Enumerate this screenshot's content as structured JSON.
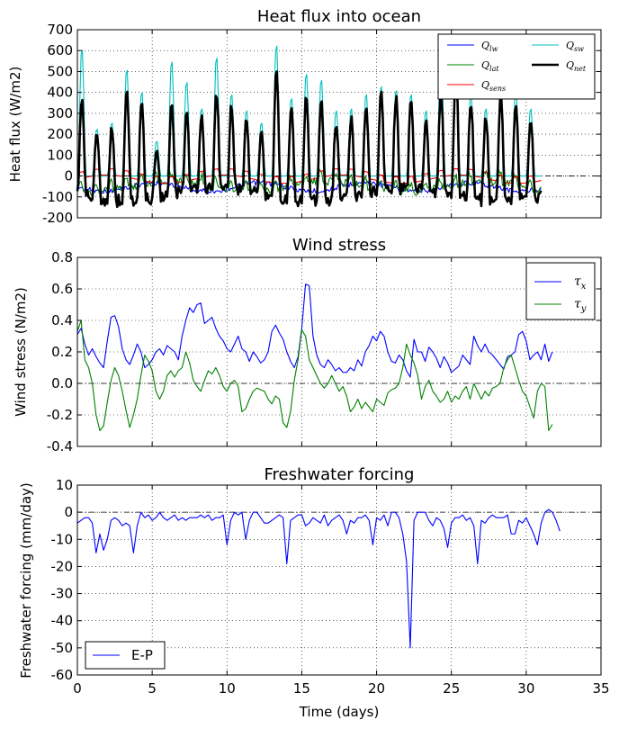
{
  "chart_data": [
    {
      "id": "heat",
      "type": "line",
      "title": "Heat flux into ocean",
      "xlabel": "",
      "ylabel": "Heat flux (W/m2)",
      "xlim": [
        0,
        35
      ],
      "ylim": [
        -200,
        700
      ],
      "xticks": [
        0,
        5,
        10,
        15,
        20,
        25,
        30,
        35
      ],
      "yticks": [
        -200,
        -100,
        0,
        100,
        200,
        300,
        400,
        500,
        600,
        700
      ],
      "grid": true,
      "legend": "top-right",
      "zero_line": true,
      "series": [
        {
          "name": "Q_lw",
          "label_base": "Q",
          "label_sub": "lw",
          "color": "#0000ff",
          "width": 1.1,
          "kind": "lw"
        },
        {
          "name": "Q_lat",
          "label_base": "Q",
          "label_sub": "lat",
          "color": "#008000",
          "width": 1.1,
          "kind": "lat"
        },
        {
          "name": "Q_sens",
          "label_base": "Q",
          "label_sub": "sens",
          "color": "#ff0000",
          "width": 1.1,
          "kind": "sens"
        },
        {
          "name": "Q_sw",
          "label_base": "Q",
          "label_sub": "sw",
          "color": "#00bfbf",
          "width": 1.1,
          "kind": "sw"
        },
        {
          "name": "Q_net",
          "label_base": "Q",
          "label_sub": "net",
          "color": "#000000",
          "width": 2.6,
          "kind": "net"
        }
      ],
      "daily_peaks": [
        400,
        220,
        250,
        430,
        380,
        160,
        370,
        330,
        300,
        420,
        360,
        300,
        250,
        530,
        350,
        400,
        380,
        280,
        300,
        370,
        420,
        400,
        380,
        280,
        420,
        520,
        380,
        300,
        400,
        360,
        280
      ],
      "sw_peaks": [
        620,
        230,
        260,
        520,
        410,
        170,
        560,
        460,
        330,
        580,
        400,
        320,
        260,
        640,
        380,
        500,
        470,
        320,
        330,
        400,
        440,
        420,
        400,
        320,
        600,
        560,
        400,
        330,
        420,
        420,
        330
      ]
    },
    {
      "id": "wind",
      "type": "line",
      "title": "Wind stress",
      "xlabel": "",
      "ylabel": "Wind stress (N/m2)",
      "xlim": [
        0,
        35
      ],
      "ylim": [
        -0.4,
        0.8
      ],
      "xticks": [
        0,
        5,
        10,
        15,
        20,
        25,
        30,
        35
      ],
      "yticks": [
        -0.4,
        -0.2,
        0.0,
        0.2,
        0.4,
        0.6,
        0.8
      ],
      "grid": true,
      "legend": "top-right",
      "zero_line": true,
      "dt": 0.25,
      "series": [
        {
          "name": "tau_x",
          "label_base": "τ",
          "label_sub": "x",
          "color": "#0000ff",
          "width": 1.1,
          "values": [
            0.31,
            0.35,
            0.25,
            0.18,
            0.22,
            0.17,
            0.13,
            0.1,
            0.27,
            0.42,
            0.43,
            0.36,
            0.22,
            0.15,
            0.12,
            0.18,
            0.25,
            0.2,
            0.1,
            0.12,
            0.15,
            0.2,
            0.22,
            0.18,
            0.24,
            0.22,
            0.2,
            0.15,
            0.3,
            0.4,
            0.48,
            0.45,
            0.5,
            0.51,
            0.38,
            0.4,
            0.42,
            0.35,
            0.3,
            0.27,
            0.22,
            0.2,
            0.25,
            0.3,
            0.22,
            0.2,
            0.14,
            0.2,
            0.17,
            0.13,
            0.15,
            0.2,
            0.33,
            0.37,
            0.32,
            0.28,
            0.2,
            0.14,
            0.1,
            0.17,
            0.35,
            0.63,
            0.62,
            0.3,
            0.18,
            0.12,
            0.1,
            0.15,
            0.12,
            0.08,
            0.1,
            0.07,
            0.07,
            0.1,
            0.08,
            0.15,
            0.11,
            0.2,
            0.24,
            0.3,
            0.27,
            0.33,
            0.3,
            0.2,
            0.14,
            0.13,
            0.18,
            0.15,
            0.08,
            0.04,
            0.28,
            0.2,
            0.2,
            0.14,
            0.23,
            0.2,
            0.16,
            0.1,
            0.17,
            0.13,
            0.07,
            0.09,
            0.11,
            0.18,
            0.15,
            0.12,
            0.3,
            0.24,
            0.2,
            0.25,
            0.2,
            0.18,
            0.15,
            0.12,
            0.09,
            0.17,
            0.18,
            0.2,
            0.31,
            0.33,
            0.27,
            0.15,
            0.18,
            0.2,
            0.15,
            0.25,
            0.14,
            0.2
          ]
        },
        {
          "name": "tau_y",
          "label_base": "τ",
          "label_sub": "y",
          "color": "#008000",
          "width": 1.1,
          "values": [
            0.33,
            0.4,
            0.15,
            0.1,
            0.0,
            -0.2,
            -0.3,
            -0.27,
            -0.12,
            0.02,
            0.1,
            0.05,
            -0.05,
            -0.17,
            -0.28,
            -0.2,
            -0.1,
            0.05,
            0.18,
            0.14,
            0.08,
            -0.05,
            -0.1,
            -0.05,
            0.05,
            0.08,
            0.04,
            0.08,
            0.1,
            0.2,
            0.13,
            0.02,
            -0.02,
            -0.05,
            0.02,
            0.08,
            0.06,
            0.1,
            0.05,
            -0.02,
            -0.05,
            0.0,
            0.02,
            -0.02,
            -0.18,
            -0.16,
            -0.1,
            -0.05,
            -0.03,
            -0.04,
            -0.05,
            -0.1,
            -0.13,
            -0.08,
            -0.1,
            -0.25,
            -0.28,
            -0.18,
            0.02,
            0.15,
            0.34,
            0.3,
            0.15,
            0.1,
            0.05,
            0.0,
            -0.03,
            0.0,
            0.05,
            0.0,
            -0.05,
            -0.02,
            -0.08,
            -0.18,
            -0.15,
            -0.1,
            -0.16,
            -0.12,
            -0.15,
            -0.18,
            -0.1,
            -0.12,
            -0.14,
            -0.06,
            -0.04,
            -0.03,
            0.0,
            0.1,
            0.25,
            0.18,
            0.13,
            0.05,
            -0.1,
            -0.02,
            0.02,
            -0.05,
            -0.08,
            -0.12,
            -0.1,
            -0.05,
            -0.12,
            -0.08,
            -0.1,
            -0.05,
            -0.02,
            -0.1,
            0.0,
            -0.05,
            -0.1,
            -0.05,
            -0.08,
            -0.03,
            -0.02,
            0.0,
            0.1,
            0.15,
            0.18,
            0.1,
            0.02,
            -0.05,
            -0.08,
            -0.15,
            -0.22,
            -0.05,
            0.0,
            -0.02,
            -0.3,
            -0.26
          ]
        }
      ]
    },
    {
      "id": "fresh",
      "type": "line",
      "title": "Freshwater forcing",
      "xlabel": "Time (days)",
      "ylabel": "Freshwater forcing (mm/day)",
      "xlim": [
        0,
        35
      ],
      "ylim": [
        -60,
        10
      ],
      "xticks": [
        0,
        5,
        10,
        15,
        20,
        25,
        30,
        35
      ],
      "yticks": [
        -60,
        -50,
        -40,
        -30,
        -20,
        -10,
        0,
        10
      ],
      "grid": true,
      "legend": "bottom-left",
      "zero_line": true,
      "dt": 0.25,
      "series": [
        {
          "name": "E-P",
          "color": "#0000ff",
          "width": 1.1,
          "values": [
            -4,
            -3,
            -2,
            -2,
            -4,
            -15,
            -8,
            -14,
            -10,
            -3,
            -2,
            -3,
            -5,
            -4,
            -5,
            -15,
            -5,
            0,
            -2,
            -1,
            -3,
            -2,
            0,
            -2,
            -3,
            -2,
            -1,
            -3,
            -2,
            -3,
            -2,
            -2,
            -2,
            -1,
            -2,
            -1,
            -3,
            -2,
            -2,
            -1,
            -12,
            -3,
            0,
            -1,
            0,
            -10,
            -3,
            0,
            0,
            -2,
            -4,
            -4,
            -3,
            -2,
            -1,
            -2,
            -19,
            -3,
            -2,
            -1,
            -1,
            -5,
            -4,
            -2,
            -3,
            -4,
            -1,
            -5,
            -3,
            -2,
            -1,
            -3,
            -8,
            -3,
            -4,
            -2,
            -2,
            -1,
            -3,
            -12,
            -2,
            -3,
            -1,
            -5,
            0,
            0,
            -2,
            -8,
            -18,
            -50,
            -3,
            0,
            0,
            0,
            -3,
            -5,
            -2,
            -3,
            -6,
            -13,
            -4,
            -2,
            -2,
            -1,
            -3,
            -2,
            -5,
            -19,
            -3,
            -4,
            -2,
            -1,
            -2,
            -2,
            -2,
            -1,
            -8,
            -8,
            -3,
            -4,
            -2,
            -5,
            -8,
            -12,
            -4,
            0,
            1,
            0,
            -3,
            -7
          ]
        }
      ]
    }
  ]
}
